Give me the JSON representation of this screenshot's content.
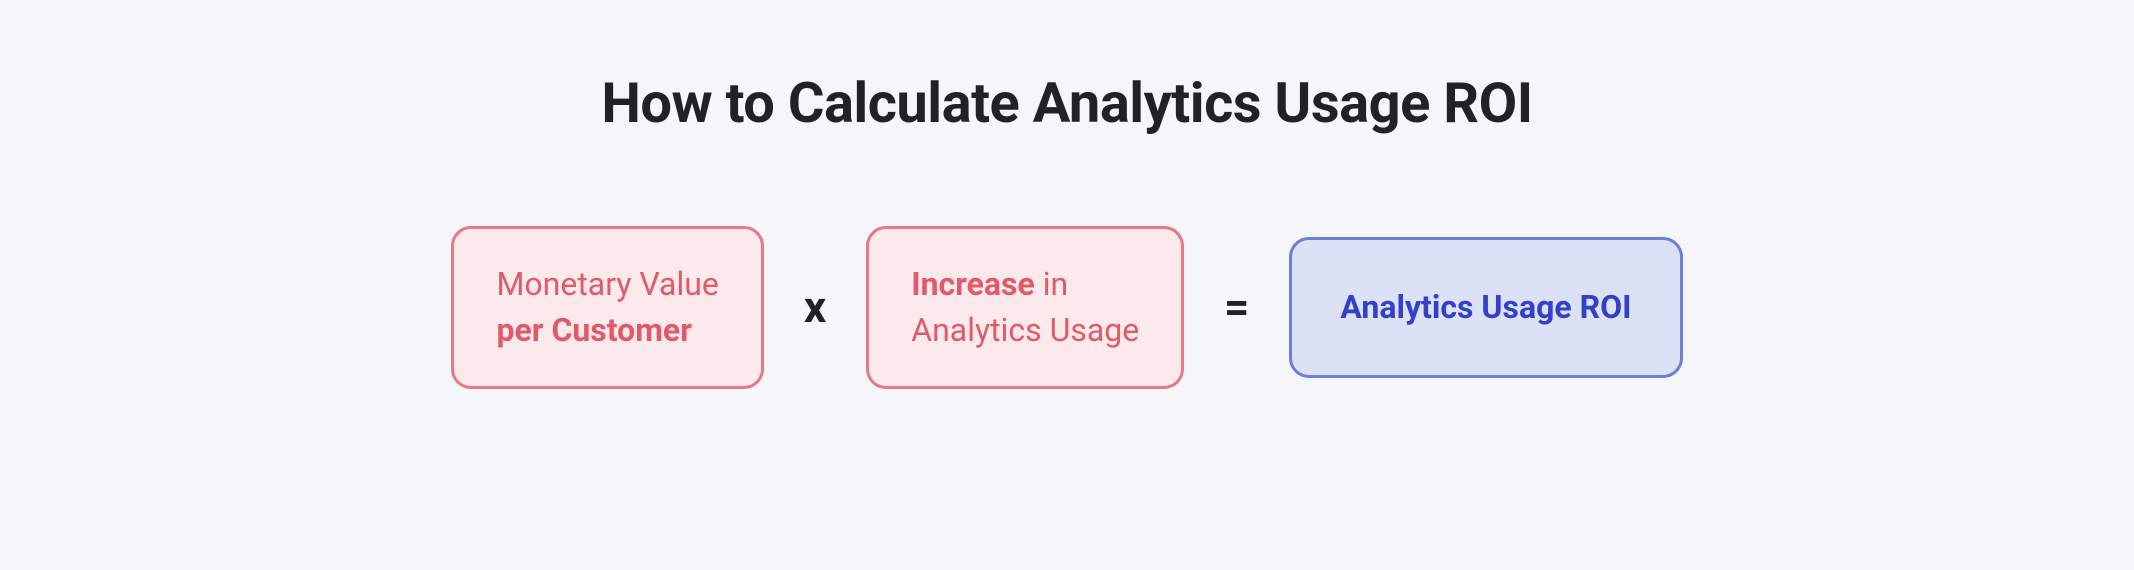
{
  "type": "infographic",
  "background_color": "#f5f6fa",
  "title": {
    "text": "How to Calculate Analytics Usage ROI",
    "color": "#1f2328",
    "fontsize": 56,
    "fontweight": 700
  },
  "formula": {
    "box1": {
      "line1_normal": "Monetary Value",
      "line2_bold": "per Customer",
      "border_color": "#e77885",
      "background_color": "#fbe9eb",
      "text_color": "#e15a6a",
      "fontsize": 32,
      "border_radius": 20
    },
    "operator1": {
      "symbol": "x",
      "color": "#1f2328",
      "fontsize": 44,
      "fontweight": 700
    },
    "box2": {
      "line1_bold": "Increase",
      "line1_normal": " in",
      "line2_normal": "Analytics Usage",
      "border_color": "#e77885",
      "background_color": "#fbe9eb",
      "text_color": "#e15a6a",
      "fontsize": 32,
      "border_radius": 20
    },
    "operator2": {
      "symbol": "=",
      "color": "#1f2328",
      "fontsize": 44,
      "fontweight": 700
    },
    "box3": {
      "label": "Analytics Usage ROI",
      "border_color": "#6b7fd6",
      "background_color": "#dde1f5",
      "text_color": "#3340c9",
      "fontsize": 32,
      "fontweight": 700,
      "border_radius": 20
    }
  }
}
